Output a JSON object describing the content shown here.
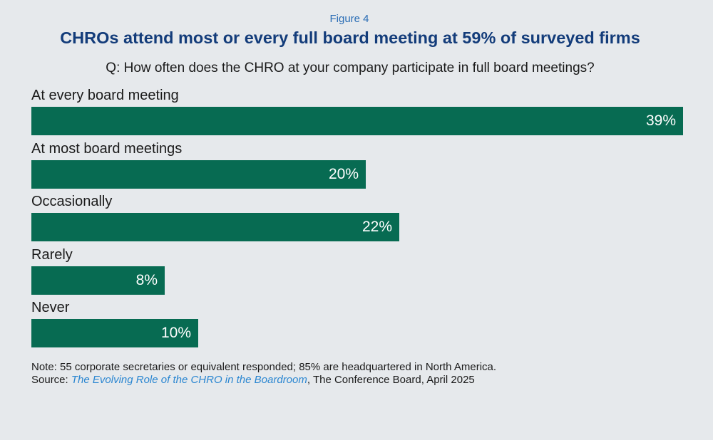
{
  "figure_label": "Figure 4",
  "title": "CHROs attend most or every full board meeting at 59% of surveyed firms",
  "question": "Q: How often does the CHRO at your company participate in full board meetings?",
  "chart_data": {
    "type": "bar",
    "orientation": "horizontal",
    "categories": [
      "At every board meeting",
      "At most board meetings",
      "Occasionally",
      "Rarely",
      "Never"
    ],
    "values": [
      39,
      20,
      22,
      8,
      10
    ],
    "value_labels": [
      "39%",
      "20%",
      "22%",
      "8%",
      "10%"
    ],
    "unit": "%",
    "xlim": [
      0,
      39
    ],
    "bar_color": "#076b52",
    "grid": false,
    "legend": "none"
  },
  "note": "Note: 55 corporate secretaries or equivalent responded; 85% are headquartered in North America.",
  "source": {
    "prefix": "Source: ",
    "link_text": "The Evolving Role of the CHRO in the Boardroom",
    "suffix": ", The Conference Board, April 2025"
  }
}
